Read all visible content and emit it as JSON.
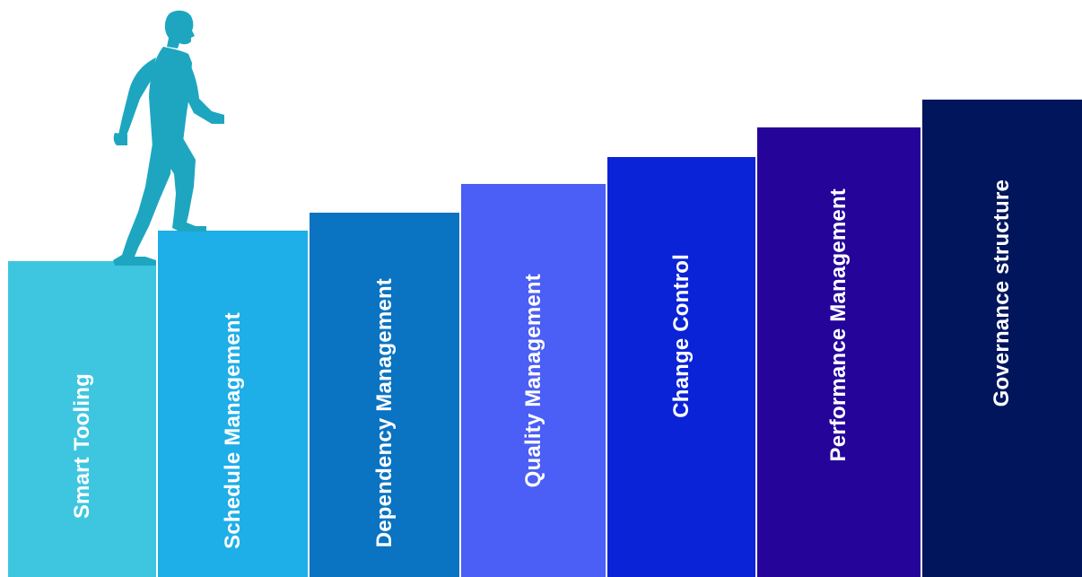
{
  "steps": [
    {
      "label": "Smart Tooling",
      "color": "#3ec6e0"
    },
    {
      "label": "Schedule Management",
      "color": "#1eaee8"
    },
    {
      "label": "Dependency Management",
      "color": "#0a73c2"
    },
    {
      "label": "Quality Management",
      "color": "#4b5ef5"
    },
    {
      "label": "Change Control",
      "color": "#0b23d6"
    },
    {
      "label": "Performance Management",
      "color": "#25049a"
    },
    {
      "label": "Governance structure",
      "color": "#00155c"
    }
  ],
  "figure": {
    "icon": "climbing-businessman-icon",
    "color": "#1ea6c0"
  }
}
